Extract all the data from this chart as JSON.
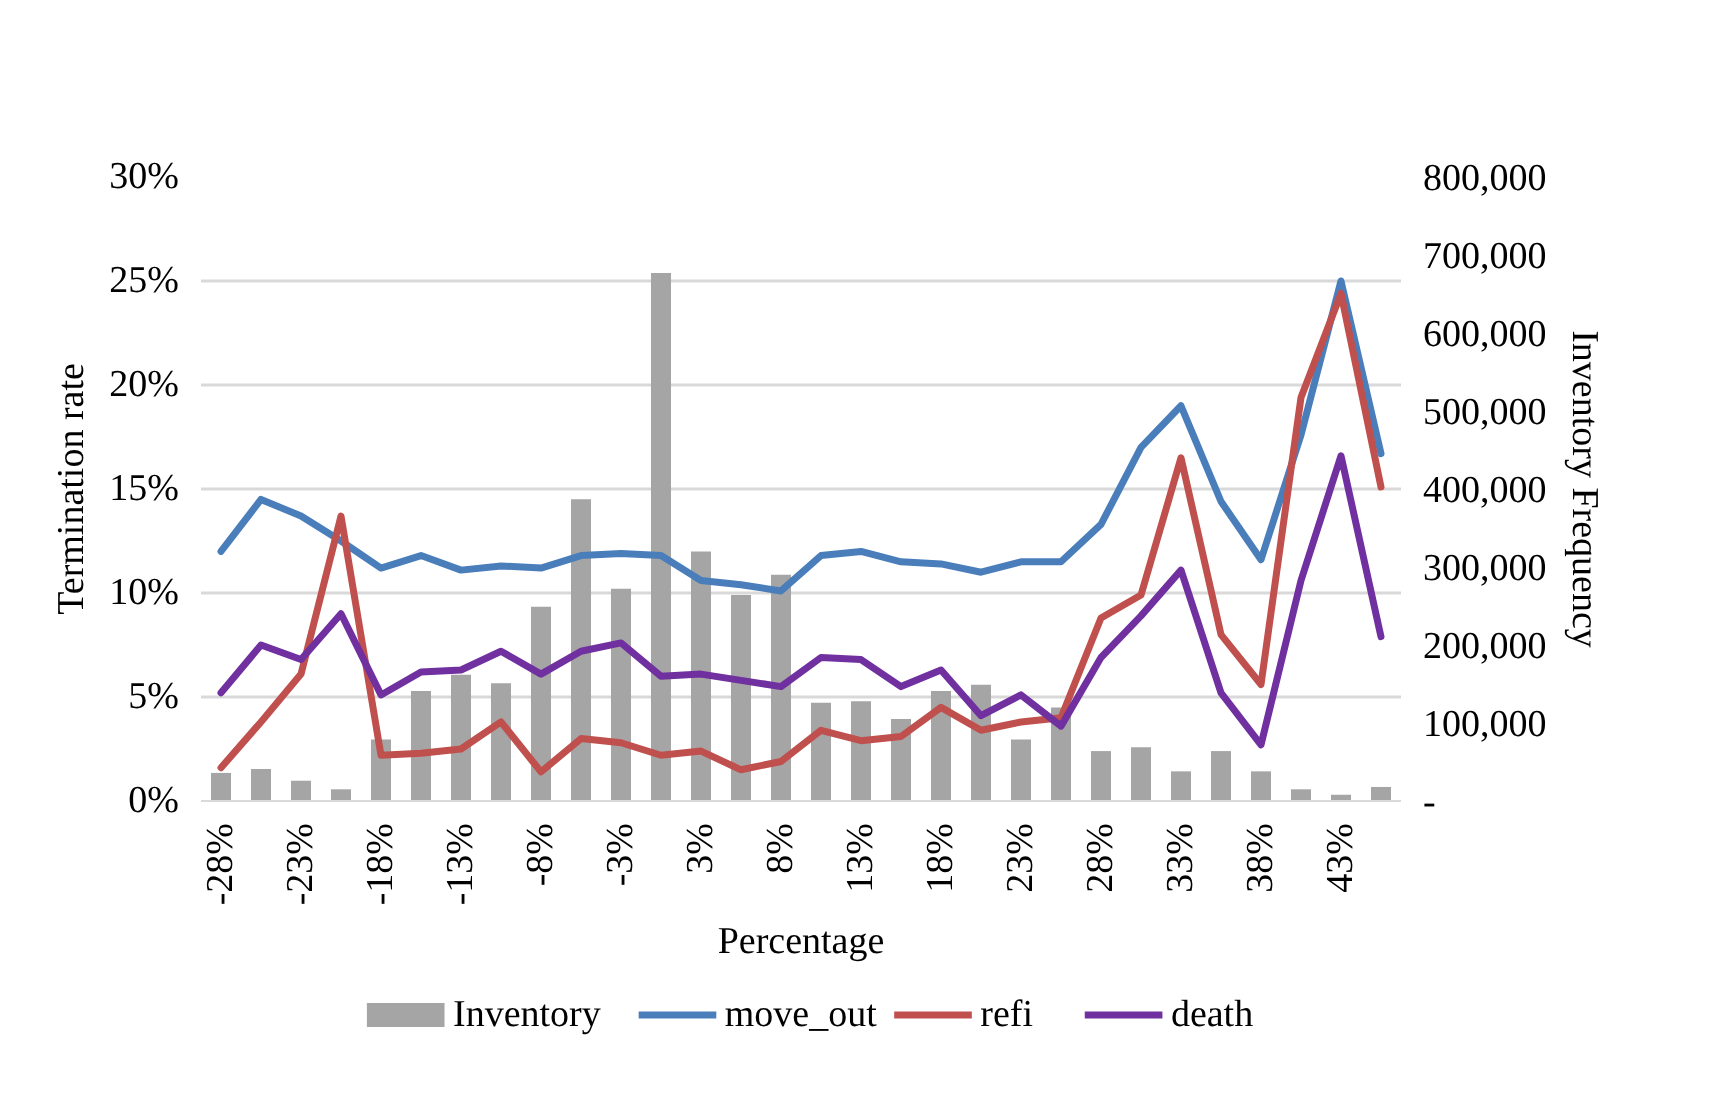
{
  "chart_data": {
    "type": "bar",
    "xlabel": "Percentage",
    "ylabel": "Termination rate",
    "y2label": "Inventory Frequency",
    "categories": [
      "-28%",
      null,
      "-23%",
      null,
      "-18%",
      null,
      "-13%",
      null,
      "-8%",
      null,
      "-3%",
      null,
      "3%",
      null,
      "8%",
      null,
      "13%",
      null,
      "18%",
      null,
      "23%",
      null,
      "28%",
      null,
      "33%",
      null,
      "38%",
      null,
      "43%",
      null
    ],
    "series": [
      {
        "name": "Inventory",
        "axis": "y2",
        "color": "#a5a5a5",
        "values": [
          36000,
          41000,
          26000,
          15000,
          79000,
          141000,
          162000,
          151000,
          249000,
          387000,
          272000,
          677000,
          320000,
          264000,
          290000,
          126000,
          128000,
          105000,
          141000,
          149000,
          79000,
          120000,
          64000,
          69000,
          38000,
          64000,
          38000,
          15000,
          8000,
          18000
        ]
      },
      {
        "name": "move_out",
        "type": "line",
        "color": "#4a7ebb",
        "values": [
          12.0,
          14.5,
          13.7,
          12.5,
          11.2,
          11.8,
          11.1,
          11.3,
          11.2,
          11.8,
          11.9,
          11.8,
          10.6,
          10.4,
          10.1,
          11.8,
          12.0,
          11.5,
          11.4,
          11.0,
          11.5,
          11.5,
          13.3,
          17.0,
          19.0,
          14.4,
          11.6,
          17.6,
          25.0,
          16.7
        ]
      },
      {
        "name": "refi",
        "type": "line",
        "color": "#c0504d",
        "values": [
          1.6,
          3.8,
          6.1,
          13.7,
          2.2,
          2.3,
          2.5,
          3.8,
          1.4,
          3.0,
          2.8,
          2.2,
          2.4,
          1.5,
          1.9,
          3.4,
          2.9,
          3.1,
          4.5,
          3.4,
          3.8,
          4.0,
          8.8,
          9.9,
          16.5,
          8.0,
          5.6,
          19.4,
          24.4,
          15.1
        ]
      },
      {
        "name": "death",
        "type": "line",
        "color": "#7030a0",
        "values": [
          5.2,
          7.5,
          6.8,
          9.0,
          5.1,
          6.2,
          6.3,
          7.2,
          6.1,
          7.2,
          7.6,
          6.0,
          6.1,
          5.8,
          5.5,
          6.9,
          6.8,
          5.5,
          6.3,
          4.1,
          5.1,
          3.6,
          6.9,
          8.9,
          11.1,
          5.2,
          2.7,
          10.6,
          16.6,
          7.9
        ]
      }
    ],
    "ylim": [
      0,
      30
    ],
    "yticks": [
      {
        "value": 0,
        "label": "0%"
      },
      {
        "value": 5,
        "label": "5%"
      },
      {
        "value": 10,
        "label": "10%"
      },
      {
        "value": 15,
        "label": "15%"
      },
      {
        "value": 20,
        "label": "20%"
      },
      {
        "value": 25,
        "label": "25%"
      },
      {
        "value": 30,
        "label": "30%"
      }
    ],
    "y2lim": [
      0,
      800000
    ],
    "y2ticks": [
      {
        "value": 0,
        "label": "-"
      },
      {
        "value": 100000,
        "label": "100,000"
      },
      {
        "value": 200000,
        "label": "200,000"
      },
      {
        "value": 300000,
        "label": "300,000"
      },
      {
        "value": 400000,
        "label": "400,000"
      },
      {
        "value": 500000,
        "label": "500,000"
      },
      {
        "value": 600000,
        "label": "600,000"
      },
      {
        "value": 700000,
        "label": "700,000"
      },
      {
        "value": 800000,
        "label": "800,000"
      }
    ],
    "grid": "y",
    "legend": "bottom",
    "marker": "none",
    "line_style": "solid"
  }
}
